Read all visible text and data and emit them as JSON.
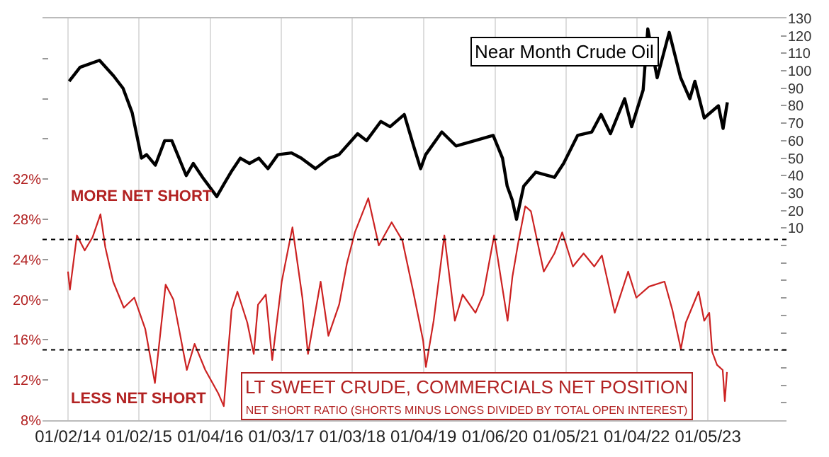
{
  "chart_data": {
    "type": "line",
    "title": "Near Month Crude Oil",
    "annotations": [
      "MORE NET SHORT",
      "LESS NET SHORT",
      "LT SWEET CRUDE, COMMERCIALS NET POSITION",
      "NET SHORT RATIO (SHORTS MINUS LONGS DIVIDED BY TOTAL OPEN INTEREST)"
    ],
    "xlim": [
      "2013-08-24",
      "2024-02-13"
    ],
    "xticks": [
      {
        "value": "2014-01-02",
        "label": "01/02/14"
      },
      {
        "value": "2015-01-02",
        "label": "01/02/15"
      },
      {
        "value": "2016-01-04",
        "label": "01/04/16"
      },
      {
        "value": "2017-01-03",
        "label": "01/03/17"
      },
      {
        "value": "2018-01-03",
        "label": "01/03/18"
      },
      {
        "value": "2019-01-04",
        "label": "01/04/19"
      },
      {
        "value": "2020-01-06",
        "label": "01/06/20"
      },
      {
        "value": "2021-01-05",
        "label": "01/05/21"
      },
      {
        "value": "2022-01-04",
        "label": "01/04/22"
      },
      {
        "value": "2023-01-05",
        "label": "01/05/23"
      }
    ],
    "ylim": [
      8,
      48
    ],
    "yticks": [
      {
        "value": 8,
        "label": "8%"
      },
      {
        "value": 12,
        "label": "12%"
      },
      {
        "value": 16,
        "label": "16%"
      },
      {
        "value": 20,
        "label": "20%"
      },
      {
        "value": 24,
        "label": "24%"
      },
      {
        "value": 28,
        "label": "28%"
      },
      {
        "value": 32,
        "label": "32%"
      },
      {
        "value": 36,
        "label": null
      },
      {
        "value": 40,
        "label": null
      },
      {
        "value": 44,
        "label": null
      }
    ],
    "y2lim": [
      -100,
      130
    ],
    "y2ticks": [
      {
        "value": -90,
        "label": null
      },
      {
        "value": -80,
        "label": null
      },
      {
        "value": -70,
        "label": null
      },
      {
        "value": -60,
        "label": null
      },
      {
        "value": -50,
        "label": null
      },
      {
        "value": -40,
        "label": null
      },
      {
        "value": -30,
        "label": null
      },
      {
        "value": -20,
        "label": null
      },
      {
        "value": -10,
        "label": null
      },
      {
        "value": 0,
        "label": null
      },
      10,
      20,
      30,
      40,
      50,
      60,
      70,
      80,
      90,
      100,
      110,
      120,
      130
    ],
    "grid": "x",
    "ref_lines": [
      {
        "axis": "y",
        "value": 26,
        "color": "#000000",
        "line_style": "dotted"
      },
      {
        "axis": "y",
        "value": 15,
        "color": "#000000",
        "line_style": "dotted"
      }
    ],
    "series": [
      {
        "color": "#cc2222",
        "x": [
          "2014-01-02",
          "2014-01-12",
          "2014-02-17",
          "2014-03-29",
          "2014-05-08",
          "2014-06-18",
          "2014-07-13",
          "2014-08-22",
          "2014-10-16",
          "2014-12-09",
          "2015-02-03",
          "2015-03-25",
          "2015-05-19",
          "2015-06-28",
          "2015-09-05",
          "2015-10-15",
          "2015-12-09",
          "2016-02-13",
          "2016-03-13",
          "2016-04-22",
          "2016-05-22",
          "2016-07-12",
          "2016-08-14",
          "2016-09-05",
          "2016-10-15",
          "2016-11-17",
          "2017-01-05",
          "2017-03-01",
          "2017-04-21",
          "2017-05-20",
          "2017-07-24",
          "2017-09-02",
          "2017-10-27",
          "2017-12-06",
          "2018-01-16",
          "2018-03-26",
          "2018-05-19",
          "2018-07-24",
          "2018-09-17",
          "2018-11-10",
          "2019-01-02",
          "2019-01-16",
          "2019-02-25",
          "2019-04-21",
          "2019-06-14",
          "2019-07-24",
          "2019-09-28",
          "2019-11-07",
          "2020-01-02",
          "2020-03-11",
          "2020-04-05",
          "2020-05-05",
          "2020-06-10",
          "2020-07-09",
          "2020-09-13",
          "2020-11-07",
          "2020-12-17",
          "2021-02-10",
          "2021-04-06",
          "2021-05-31",
          "2021-07-09",
          "2021-09-13",
          "2021-11-21",
          "2022-01-02",
          "2022-03-08",
          "2022-05-27",
          "2022-07-06",
          "2022-08-19",
          "2022-09-13",
          "2022-11-18",
          "2022-12-17",
          "2023-01-12",
          "2023-01-27",
          "2023-02-21",
          "2023-03-22",
          "2023-04-02",
          "2023-04-13"
        ],
        "values": [
          22.8,
          21.0,
          26.4,
          24.9,
          26.2,
          28.5,
          25.2,
          21.8,
          19.2,
          20.2,
          17.1,
          11.7,
          21.5,
          20.0,
          13.0,
          15.6,
          13.0,
          10.7,
          9.4,
          19.0,
          20.8,
          17.7,
          14.6,
          19.5,
          20.5,
          14.0,
          21.8,
          27.2,
          20.2,
          14.6,
          21.8,
          16.4,
          19.5,
          23.6,
          26.7,
          30.1,
          25.4,
          27.7,
          25.9,
          21.0,
          15.9,
          13.3,
          17.9,
          26.4,
          17.9,
          20.5,
          18.7,
          20.5,
          26.4,
          17.9,
          22.3,
          25.7,
          29.3,
          28.8,
          22.8,
          24.6,
          26.7,
          23.3,
          24.6,
          23.3,
          24.4,
          18.7,
          22.8,
          20.2,
          21.3,
          21.8,
          19.0,
          15.1,
          17.7,
          20.8,
          17.9,
          18.7,
          14.8,
          13.5,
          13.0,
          9.9,
          12.8
        ]
      },
      {
        "color": "#000000",
        "axis": "y2",
        "x": [
          "2014-01-08",
          "2014-03-05",
          "2014-06-13",
          "2014-08-25",
          "2014-10-12",
          "2014-11-28",
          "2015-01-15",
          "2015-02-10",
          "2015-03-27",
          "2015-05-14",
          "2015-06-20",
          "2015-08-07",
          "2015-09-02",
          "2015-10-08",
          "2015-11-25",
          "2016-02-06",
          "2016-03-13",
          "2016-04-19",
          "2016-06-06",
          "2016-07-23",
          "2016-09-09",
          "2016-10-26",
          "2016-12-16",
          "2017-02-24",
          "2017-04-15",
          "2017-06-27",
          "2017-09-05",
          "2017-10-26",
          "2018-01-30",
          "2018-03-17",
          "2018-05-29",
          "2018-07-16",
          "2018-09-27",
          "2018-11-14",
          "2018-12-20",
          "2019-01-15",
          "2019-04-08",
          "2019-06-20",
          "2019-09-24",
          "2019-12-28",
          "2020-02-14",
          "2020-03-09",
          "2020-04-04",
          "2020-04-26",
          "2020-06-02",
          "2020-08-03",
          "2020-11-07",
          "2020-12-24",
          "2021-03-06",
          "2021-05-18",
          "2021-07-05",
          "2021-08-22",
          "2021-11-03",
          "2021-12-09",
          "2022-02-06",
          "2022-03-02",
          "2022-04-19",
          "2022-06-20",
          "2022-08-18",
          "2022-10-04",
          "2022-10-30",
          "2022-12-17",
          "2023-02-28",
          "2023-03-24",
          "2023-04-15"
        ],
        "values": [
          94,
          102,
          106,
          97,
          90,
          76,
          50,
          52,
          46,
          60,
          60,
          47,
          40,
          47,
          39,
          28,
          35,
          42,
          50,
          47,
          50,
          44,
          52,
          53,
          50,
          44,
          50,
          52,
          64,
          60,
          71,
          68,
          75,
          57,
          44,
          52,
          65,
          57,
          60,
          63,
          50,
          34,
          26,
          15,
          34,
          42,
          39,
          47,
          63,
          65,
          75,
          64,
          84,
          68,
          89,
          124,
          96,
          122,
          96,
          84,
          94,
          73,
          80,
          67,
          82
        ]
      }
    ]
  }
}
